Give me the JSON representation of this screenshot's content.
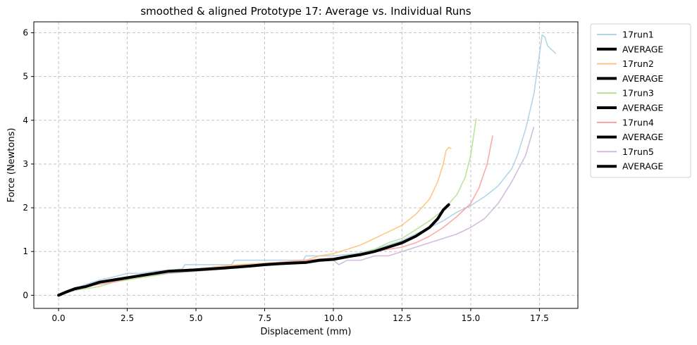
{
  "chart_data": {
    "type": "line",
    "title": "smoothed & aligned Prototype 17: Average vs. Individual Runs",
    "xlabel": "Displacement (mm)",
    "ylabel": "Force (Newtons)",
    "xlim": [
      -0.9,
      18.9
    ],
    "ylim": [
      -0.3,
      6.25
    ],
    "xticks": [
      0,
      2.5,
      5,
      7.5,
      10,
      12.5,
      15,
      17.5
    ],
    "xtick_labels": [
      "0.0",
      "2.5",
      "5.0",
      "7.5",
      "10.0",
      "12.5",
      "15.0",
      "17.5"
    ],
    "yticks": [
      0,
      1,
      2,
      3,
      4,
      5,
      6
    ],
    "ytick_labels": [
      "0",
      "1",
      "2",
      "3",
      "4",
      "5",
      "6"
    ],
    "grid": true,
    "legend_position": "outside-right",
    "series": [
      {
        "name": "17run1",
        "color": "#a6cee3",
        "points": [
          [
            0,
            0
          ],
          [
            0.3,
            0.08
          ],
          [
            0.6,
            0.15
          ],
          [
            1,
            0.25
          ],
          [
            1.5,
            0.35
          ],
          [
            2,
            0.42
          ],
          [
            2.5,
            0.5
          ],
          [
            3,
            0.5
          ],
          [
            3.5,
            0.55
          ],
          [
            4.5,
            0.6
          ],
          [
            4.6,
            0.7
          ],
          [
            6.3,
            0.7
          ],
          [
            6.4,
            0.8
          ],
          [
            8.9,
            0.8
          ],
          [
            9,
            0.9
          ],
          [
            10,
            0.9
          ],
          [
            10.8,
            0.95
          ],
          [
            11.5,
            1.05
          ],
          [
            12,
            1.15
          ],
          [
            12.5,
            1.25
          ],
          [
            13,
            1.4
          ],
          [
            13.5,
            1.55
          ],
          [
            14,
            1.7
          ],
          [
            14.5,
            1.9
          ],
          [
            15,
            2.05
          ],
          [
            15.5,
            2.25
          ],
          [
            16,
            2.5
          ],
          [
            16.5,
            2.9
          ],
          [
            16.7,
            3.2
          ],
          [
            17,
            3.8
          ],
          [
            17.3,
            4.6
          ],
          [
            17.5,
            5.5
          ],
          [
            17.6,
            5.95
          ],
          [
            17.7,
            5.9
          ],
          [
            17.8,
            5.7
          ],
          [
            18.1,
            5.52
          ]
        ]
      },
      {
        "name": "AVERAGE",
        "color": "#000000",
        "is_average": true,
        "points": []
      },
      {
        "name": "17run2",
        "color": "#fdbf6f",
        "points": [
          [
            0,
            0
          ],
          [
            0.5,
            0.1
          ],
          [
            1,
            0.2
          ],
          [
            1.5,
            0.3
          ],
          [
            2,
            0.35
          ],
          [
            2.5,
            0.4
          ],
          [
            3,
            0.45
          ],
          [
            4,
            0.55
          ],
          [
            5,
            0.6
          ],
          [
            6.5,
            0.7
          ],
          [
            8,
            0.75
          ],
          [
            9,
            0.8
          ],
          [
            9.5,
            0.9
          ],
          [
            10,
            0.95
          ],
          [
            10.5,
            1.05
          ],
          [
            11,
            1.15
          ],
          [
            11.5,
            1.3
          ],
          [
            12,
            1.45
          ],
          [
            12.5,
            1.6
          ],
          [
            13,
            1.85
          ],
          [
            13.5,
            2.2
          ],
          [
            13.8,
            2.6
          ],
          [
            14,
            3.0
          ],
          [
            14.1,
            3.3
          ],
          [
            14.2,
            3.38
          ],
          [
            14.3,
            3.35
          ]
        ]
      },
      {
        "name": "AVERAGE",
        "color": "#000000",
        "is_average": true,
        "points": []
      },
      {
        "name": "17run3",
        "color": "#b2df8a",
        "points": [
          [
            0,
            0
          ],
          [
            0.5,
            0.1
          ],
          [
            1,
            0.15
          ],
          [
            1.5,
            0.2
          ],
          [
            2,
            0.3
          ],
          [
            2.5,
            0.35
          ],
          [
            3,
            0.4
          ],
          [
            3.5,
            0.45
          ],
          [
            4,
            0.5
          ],
          [
            5,
            0.55
          ],
          [
            6,
            0.6
          ],
          [
            7,
            0.65
          ],
          [
            8,
            0.7
          ],
          [
            9,
            0.75
          ],
          [
            10,
            0.8
          ],
          [
            10.5,
            0.85
          ],
          [
            11,
            0.95
          ],
          [
            11.5,
            1.05
          ],
          [
            12,
            1.2
          ],
          [
            12.5,
            1.3
          ],
          [
            13,
            1.5
          ],
          [
            13.5,
            1.7
          ],
          [
            14,
            1.95
          ],
          [
            14.5,
            2.3
          ],
          [
            14.8,
            2.7
          ],
          [
            15,
            3.2
          ],
          [
            15.2,
            4.05
          ]
        ]
      },
      {
        "name": "AVERAGE",
        "color": "#000000",
        "is_average": true,
        "points": []
      },
      {
        "name": "17run4",
        "color": "#fb9a99",
        "points": [
          [
            0,
            0
          ],
          [
            0.5,
            0.1
          ],
          [
            1,
            0.2
          ],
          [
            2,
            0.3
          ],
          [
            3,
            0.45
          ],
          [
            4,
            0.55
          ],
          [
            5,
            0.6
          ],
          [
            6,
            0.65
          ],
          [
            7,
            0.7
          ],
          [
            8,
            0.75
          ],
          [
            9,
            0.8
          ],
          [
            10,
            0.85
          ],
          [
            10.5,
            0.9
          ],
          [
            11,
            0.95
          ],
          [
            11.5,
            1.0
          ],
          [
            12,
            1.05
          ],
          [
            12.5,
            1.1
          ],
          [
            13,
            1.2
          ],
          [
            13.5,
            1.35
          ],
          [
            14,
            1.55
          ],
          [
            14.5,
            1.8
          ],
          [
            15,
            2.1
          ],
          [
            15.3,
            2.45
          ],
          [
            15.6,
            3.0
          ],
          [
            15.8,
            3.65
          ]
        ]
      },
      {
        "name": "AVERAGE",
        "color": "#000000",
        "is_average": true,
        "points": []
      },
      {
        "name": "17run5",
        "color": "#cab2d6",
        "points": [
          [
            0,
            0
          ],
          [
            1,
            0.2
          ],
          [
            2,
            0.35
          ],
          [
            3,
            0.45
          ],
          [
            4,
            0.5
          ],
          [
            5,
            0.55
          ],
          [
            6,
            0.6
          ],
          [
            7,
            0.65
          ],
          [
            8,
            0.7
          ],
          [
            9,
            0.75
          ],
          [
            10,
            0.8
          ],
          [
            10.2,
            0.7
          ],
          [
            10.5,
            0.8
          ],
          [
            11,
            0.8
          ],
          [
            11.5,
            0.9
          ],
          [
            12,
            0.9
          ],
          [
            12.5,
            1.0
          ],
          [
            13,
            1.1
          ],
          [
            13.5,
            1.2
          ],
          [
            14,
            1.3
          ],
          [
            14.5,
            1.4
          ],
          [
            15,
            1.55
          ],
          [
            15.5,
            1.75
          ],
          [
            16,
            2.1
          ],
          [
            16.5,
            2.6
          ],
          [
            17,
            3.2
          ],
          [
            17.3,
            3.85
          ]
        ]
      },
      {
        "name": "AVERAGE",
        "color": "#000000",
        "is_average": true,
        "points": [
          [
            0,
            0
          ],
          [
            0.3,
            0.08
          ],
          [
            0.6,
            0.15
          ],
          [
            1,
            0.2
          ],
          [
            1.5,
            0.3
          ],
          [
            2,
            0.35
          ],
          [
            2.5,
            0.4
          ],
          [
            3,
            0.45
          ],
          [
            3.5,
            0.5
          ],
          [
            4,
            0.55
          ],
          [
            5,
            0.58
          ],
          [
            6,
            0.62
          ],
          [
            7,
            0.67
          ],
          [
            7.5,
            0.7
          ],
          [
            8,
            0.72
          ],
          [
            9,
            0.75
          ],
          [
            9.5,
            0.8
          ],
          [
            10,
            0.82
          ],
          [
            10.5,
            0.88
          ],
          [
            11,
            0.93
          ],
          [
            11.5,
            1.0
          ],
          [
            12,
            1.1
          ],
          [
            12.5,
            1.2
          ],
          [
            13,
            1.35
          ],
          [
            13.5,
            1.55
          ],
          [
            13.8,
            1.75
          ],
          [
            14,
            1.95
          ],
          [
            14.2,
            2.07
          ]
        ]
      }
    ]
  }
}
